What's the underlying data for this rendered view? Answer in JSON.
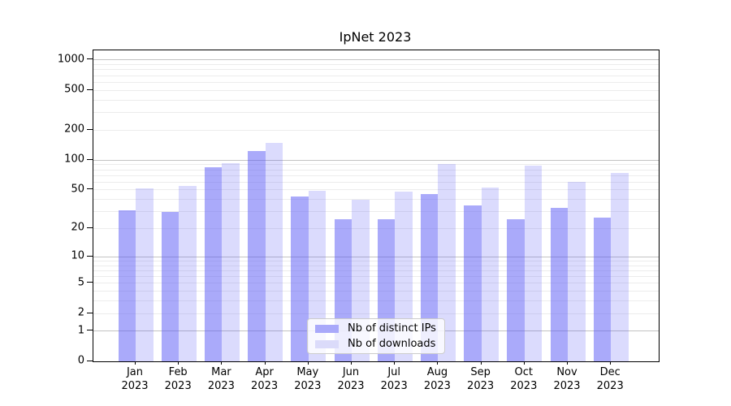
{
  "chart_data": {
    "type": "bar",
    "title": "IpNet 2023",
    "categories": [
      "Jan",
      "Feb",
      "Mar",
      "Apr",
      "May",
      "Jun",
      "Jul",
      "Aug",
      "Sep",
      "Oct",
      "Nov",
      "Dec"
    ],
    "year_label": "2023",
    "series": [
      {
        "name": "Nb of distinct IPs",
        "color": "rgba(85,85,245,0.5)",
        "legend_color": "#a9a9fa",
        "values": [
          31,
          30,
          85,
          123,
          43,
          25,
          25,
          45,
          35,
          25,
          33,
          26
        ]
      },
      {
        "name": "Nb of downloads",
        "color": "rgba(85,85,245,0.21)",
        "legend_color": "#dbdbfa",
        "values": [
          52,
          55,
          93,
          148,
          49,
          40,
          48,
          91,
          53,
          88,
          60,
          74
        ]
      }
    ],
    "yscale": "log1p",
    "ylim": [
      0,
      1250
    ],
    "y_ticks": [
      0,
      1,
      2,
      5,
      10,
      20,
      50,
      100,
      200,
      500,
      1000
    ],
    "grid_major": [
      1,
      10,
      100,
      1000
    ],
    "grid_minor": [
      2,
      3,
      4,
      5,
      6,
      7,
      8,
      9,
      20,
      30,
      40,
      50,
      60,
      70,
      80,
      90,
      200,
      300,
      400,
      500,
      600,
      700,
      800,
      900
    ],
    "legend_position": "lower center",
    "grid": "on"
  }
}
